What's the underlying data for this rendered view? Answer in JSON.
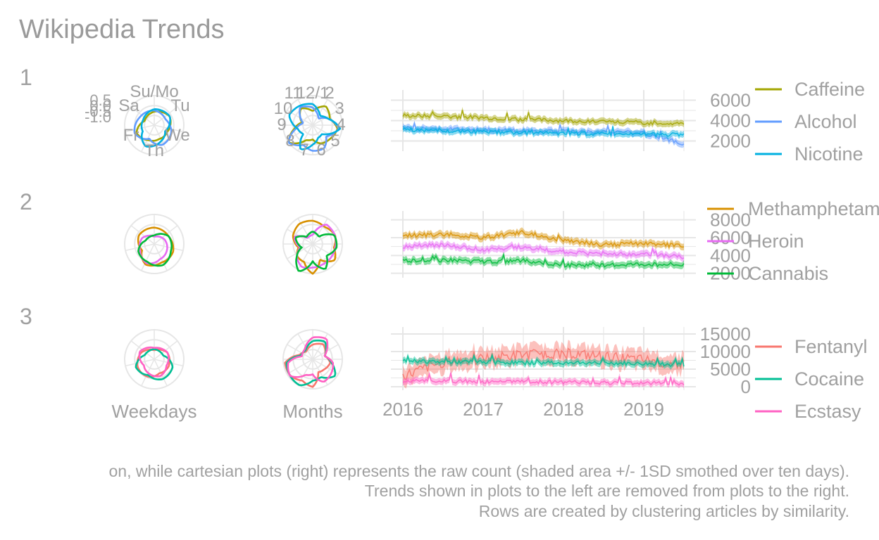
{
  "title": "Wikipedia Trends",
  "x_labels": {
    "weekdays": "Weekdays",
    "months": "Months"
  },
  "caption": [
    "on, while cartesian plots (right) represents the raw count (shaded area +/- 1SD smothed over ten days).",
    "Trends shown in plots to the left are removed from plots to the right.",
    "Rows are created by clustering articles by similarity."
  ],
  "weekday_labels": [
    "Su/Mo",
    "Tu",
    "We",
    "Th",
    "Fr",
    "Sa"
  ],
  "weekday_radial_ticks": [
    "0.5",
    "0.0",
    "-0.5",
    "-1.0"
  ],
  "month_labels": [
    "12/1",
    "2",
    "3",
    "4",
    "5",
    "6",
    "7",
    "8",
    "9",
    "10",
    "11"
  ],
  "colors": {
    "Caffeine": "#a3a500",
    "Alcohol": "#619cff",
    "Nicotine": "#00b0e0",
    "Methamphetamine": "#d89000",
    "Heroin": "#e76bf3",
    "Cannabis": "#00ba38",
    "Fentanyl": "#f8766d",
    "Cocaine": "#00bf94",
    "Ecstasy": "#ff61c3",
    "grid": "#e6e6e6",
    "text": "#a0a0a0"
  },
  "chart_data": [
    {
      "type": "line",
      "row": "1",
      "x_ticks": [],
      "y_ticks": [
        2000,
        4000,
        6000
      ],
      "ylim": [
        1000,
        7000
      ],
      "legend": [
        "Caffeine",
        "Alcohol",
        "Nicotine"
      ],
      "series": [
        {
          "name": "Caffeine",
          "values": [
            4500,
            4400,
            4300,
            4100,
            4000,
            3900,
            3800,
            3700
          ]
        },
        {
          "name": "Alcohol",
          "values": [
            3300,
            3200,
            3100,
            3000,
            2950,
            2900,
            2800,
            1700
          ]
        },
        {
          "name": "Nicotine",
          "values": [
            3100,
            3000,
            2900,
            2800,
            2750,
            2700,
            2650,
            2600
          ]
        }
      ],
      "x": [
        2016.0,
        2016.5,
        2017.0,
        2017.5,
        2018.0,
        2018.5,
        2019.0,
        2019.5
      ]
    },
    {
      "type": "line",
      "row": "2",
      "x_ticks": [],
      "y_ticks": [
        2000,
        4000,
        6000,
        8000
      ],
      "ylim": [
        1500,
        9000
      ],
      "legend": [
        "Methamphetamine",
        "Heroin",
        "Cannabis"
      ],
      "series": [
        {
          "name": "Methamphetamine",
          "values": [
            6200,
            6400,
            6000,
            6600,
            5700,
            5200,
            5400,
            5000
          ]
        },
        {
          "name": "Heroin",
          "values": [
            5000,
            5200,
            4600,
            5000,
            4400,
            4100,
            4200,
            3800
          ]
        },
        {
          "name": "Cannabis",
          "values": [
            3400,
            3500,
            3300,
            3400,
            2900,
            2900,
            3000,
            2900
          ]
        }
      ],
      "x": [
        2016.0,
        2016.5,
        2017.0,
        2017.5,
        2018.0,
        2018.5,
        2019.0,
        2019.5
      ]
    },
    {
      "type": "line",
      "row": "3",
      "x_ticks": [
        2016,
        2017,
        2018,
        2019
      ],
      "y_ticks": [
        0,
        5000,
        10000,
        15000
      ],
      "ylim": [
        -1000,
        17000
      ],
      "legend": [
        "Fentanyl",
        "Cocaine",
        "Ecstasy"
      ],
      "series": [
        {
          "name": "Fentanyl",
          "values": [
            3000,
            7000,
            8000,
            9000,
            9500,
            8500,
            7500,
            6500
          ]
        },
        {
          "name": "Cocaine",
          "values": [
            7500,
            7000,
            7000,
            6800,
            6800,
            6700,
            6500,
            6200
          ]
        },
        {
          "name": "Ecstasy",
          "values": [
            1700,
            1600,
            1500,
            1400,
            1300,
            1200,
            1100,
            800
          ]
        }
      ],
      "x": [
        2016.0,
        2016.5,
        2017.0,
        2017.5,
        2018.0,
        2018.5,
        2019.0,
        2019.5
      ]
    }
  ]
}
